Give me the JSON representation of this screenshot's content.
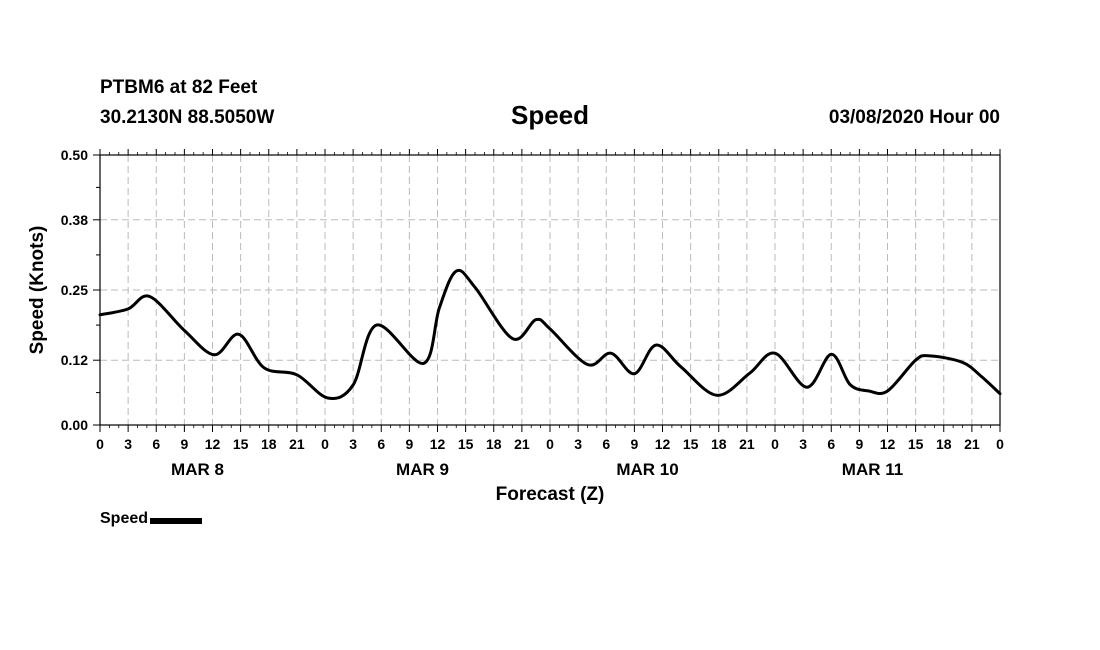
{
  "header": {
    "station": "PTBM6 at 82 Feet",
    "coords": "30.2130N 88.5050W",
    "title": "Speed",
    "runtime": "03/08/2020 Hour 00"
  },
  "legend": {
    "label": "Speed",
    "color": "#000000"
  },
  "chart_data": {
    "type": "line",
    "title": "Speed",
    "xlabel": "Forecast (Z)",
    "ylabel": "Speed (Knots)",
    "ylim": [
      0,
      0.5
    ],
    "yticks": [
      "0.00",
      "0.12",
      "0.25",
      "0.38",
      "0.50"
    ],
    "xlim": [
      0,
      96
    ],
    "xticks": [
      "0",
      "3",
      "6",
      "9",
      "12",
      "15",
      "18",
      "21",
      "0",
      "3",
      "6",
      "9",
      "12",
      "15",
      "18",
      "21",
      "0",
      "3",
      "6",
      "9",
      "12",
      "15",
      "18",
      "21",
      "0",
      "3",
      "6",
      "9",
      "12",
      "15",
      "18",
      "21",
      "0"
    ],
    "day_labels": [
      "MAR 8",
      "MAR 9",
      "MAR 10",
      "MAR 11"
    ],
    "grid": true,
    "legend_position": "bottom-left",
    "series": [
      {
        "name": "Speed",
        "color": "#000000",
        "x": [
          0,
          3,
          5.3,
          9,
          12.2,
          14.8,
          17.5,
          21,
          24.3,
          27,
          29.5,
          34.5,
          36.2,
          38,
          40,
          44,
          46.5,
          48,
          52,
          54.5,
          57,
          59.3,
          62,
          65.8,
          69.3,
          72,
          75.4,
          78,
          80,
          82,
          84,
          87,
          88.5,
          92,
          94,
          96
        ],
        "y": [
          0.204,
          0.215,
          0.238,
          0.175,
          0.13,
          0.168,
          0.106,
          0.093,
          0.05,
          0.074,
          0.185,
          0.114,
          0.217,
          0.285,
          0.255,
          0.16,
          0.195,
          0.178,
          0.112,
          0.133,
          0.095,
          0.148,
          0.107,
          0.055,
          0.096,
          0.133,
          0.07,
          0.131,
          0.075,
          0.063,
          0.063,
          0.12,
          0.128,
          0.116,
          0.09,
          0.058
        ]
      }
    ]
  }
}
